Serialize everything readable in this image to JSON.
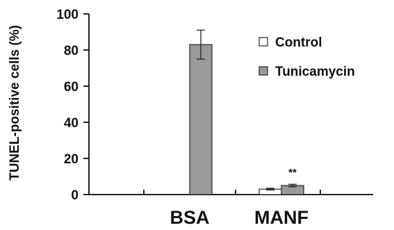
{
  "chart_data": {
    "type": "bar",
    "ylabel": "TUNEL-positive cells (%)",
    "ylim": [
      0,
      100
    ],
    "yticks": [
      0,
      20,
      40,
      60,
      80,
      100
    ],
    "categories": [
      "BSA",
      "MANF"
    ],
    "series": [
      {
        "name": "Control",
        "color": "#ffffff",
        "values": [
          0,
          3
        ],
        "errors": [
          0,
          0.5
        ]
      },
      {
        "name": "Tunicamycin",
        "color": "#9a9a9a",
        "values": [
          83,
          5
        ],
        "errors": [
          8,
          0.7
        ]
      }
    ],
    "annotations": [
      {
        "text": "**",
        "category": "MANF",
        "series": "Tunicamycin"
      }
    ],
    "legend_position": "top-right",
    "grid": false
  }
}
